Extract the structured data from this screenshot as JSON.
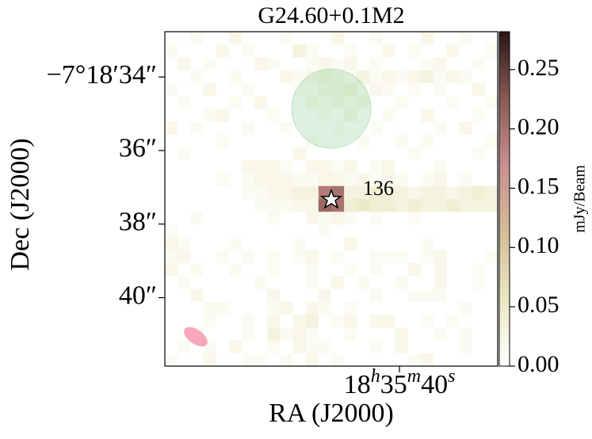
{
  "chart_data": {
    "type": "heatmap",
    "title": "G24.60+0.1M2",
    "x_label": "RA (J2000)",
    "y_label": "Dec (J2000)",
    "xlim": [
      40.43,
      39.82
    ],
    "xticks": [
      {
        "value": 40,
        "label": "18h35m40s"
      }
    ],
    "ylim": [
      41.86,
      32.77
    ],
    "yticks": [
      {
        "value": 34,
        "label": "−7°18′34″"
      },
      {
        "value": 36,
        "label": "36″"
      },
      {
        "value": 38,
        "label": "38″"
      },
      {
        "value": 40,
        "label": "40″"
      }
    ],
    "colorbar_label": "mJy/Beam",
    "clim": [
      0,
      0.282
    ],
    "cticks": [
      {
        "value": 0,
        "label": "0.00"
      },
      0.05,
      {
        "value": 0.1,
        "label": "0.10"
      },
      0.15,
      {
        "value": 0.2,
        "label": "0.20"
      },
      0.25
    ],
    "colormap": [
      "#ffffff",
      "#eae8c2",
      "#d4bb96",
      "#c99090",
      "#8a5a54",
      "#2a1616"
    ],
    "annotation": "136",
    "values": [
      [
        0,
        0,
        0.01,
        0,
        0,
        0.02,
        0,
        0,
        0,
        0.01,
        0,
        0,
        0,
        0.02,
        0,
        0,
        0.01,
        0,
        0,
        0,
        0.02,
        0,
        0,
        0.01,
        0,
        0
      ],
      [
        0.01,
        0,
        0,
        0,
        0.02,
        0,
        0.01,
        0,
        0,
        0,
        0.03,
        0.01,
        0,
        0,
        0.01,
        0,
        0,
        0.02,
        0,
        0.01,
        0,
        0,
        0.02,
        0,
        0,
        0.01
      ],
      [
        0,
        0.02,
        0,
        0.01,
        0,
        0,
        0,
        0.02,
        0.01,
        0,
        0,
        0.01,
        0.02,
        0.01,
        0.02,
        0,
        0.01,
        0,
        0,
        0,
        0.01,
        0.02,
        0,
        0,
        0.01,
        0
      ],
      [
        0,
        0,
        0.01,
        0,
        0,
        0.01,
        0,
        0,
        0,
        0.02,
        0.01,
        0.02,
        0.03,
        0.02,
        0.01,
        0.03,
        0.01,
        0.02,
        0.01,
        0.02,
        0.03,
        0.01,
        0.02,
        0.01,
        0,
        0
      ],
      [
        0.01,
        0,
        0,
        0.02,
        0,
        0,
        0.01,
        0,
        0,
        0,
        0.01,
        0.01,
        0.02,
        0.02,
        0.03,
        0.01,
        0.02,
        0.01,
        0,
        0.01,
        0,
        0.01,
        0,
        0,
        0.02,
        0
      ],
      [
        0,
        0.01,
        0,
        0,
        0,
        0.01,
        0,
        0.02,
        0,
        0,
        0,
        0.02,
        0.01,
        0.02,
        0.01,
        0.02,
        0,
        0,
        0.01,
        0,
        0,
        0,
        0.01,
        0,
        0,
        0.01
      ],
      [
        0,
        0,
        0,
        0.01,
        0.02,
        0,
        0,
        0,
        0.01,
        0,
        0,
        0,
        0.01,
        0,
        0.02,
        0,
        0,
        0.01,
        0,
        0,
        0.02,
        0,
        0,
        0,
        0.01,
        0
      ],
      [
        0.02,
        0,
        0.01,
        0,
        0,
        0,
        0.01,
        0,
        0,
        0.01,
        0,
        0,
        0,
        0.01,
        0,
        0,
        0.01,
        0,
        0,
        0,
        0,
        0.01,
        0,
        0.02,
        0,
        0
      ],
      [
        0,
        0,
        0,
        0,
        0.01,
        0,
        0,
        0,
        0,
        0,
        0,
        0.01,
        0,
        0,
        0,
        0.01,
        0,
        0,
        0.01,
        0,
        0.01,
        0,
        0,
        0,
        0,
        0.01
      ],
      [
        0,
        0.01,
        0,
        0,
        0,
        0,
        0,
        0,
        0,
        0,
        0.02,
        0,
        0,
        0,
        0,
        0,
        0,
        0,
        0,
        0.01,
        0,
        0,
        0,
        0,
        0.01,
        0
      ],
      [
        0,
        0,
        0,
        0,
        0,
        0,
        0.02,
        0.02,
        0.02,
        0.01,
        0,
        0.02,
        0.02,
        0.01,
        0.02,
        0,
        0.01,
        0.02,
        0,
        0,
        0,
        0.01,
        0,
        0,
        0,
        0
      ],
      [
        0,
        0,
        0,
        0,
        0.01,
        0,
        0.01,
        0.02,
        0.02,
        0.02,
        0.01,
        0.01,
        0.02,
        0.02,
        0.01,
        0.02,
        0.01,
        0.02,
        0.01,
        0,
        0.01,
        0.02,
        0,
        0.01,
        0,
        0
      ],
      [
        0,
        0,
        0,
        0,
        0,
        0,
        0.01,
        0.01,
        0.02,
        0.02,
        0.03,
        0.03,
        0.19,
        0.2,
        0.03,
        0.03,
        0.04,
        0.03,
        0.03,
        0.02,
        0.03,
        0.03,
        0.02,
        0.03,
        0.04,
        0.03
      ],
      [
        0,
        0,
        0,
        0,
        0,
        0,
        0,
        0.01,
        0.01,
        0.01,
        0.02,
        0.02,
        0.21,
        0.2,
        0.04,
        0.05,
        0.04,
        0.04,
        0.03,
        0.04,
        0.03,
        0.03,
        0.04,
        0.03,
        0.03,
        0.03
      ],
      [
        0,
        0,
        0.01,
        0,
        0,
        0,
        0,
        0,
        0.01,
        0,
        0,
        0.02,
        0.01,
        0.02,
        0.01,
        0,
        0.01,
        0,
        0,
        0.01,
        0,
        0,
        0,
        0,
        0,
        0
      ],
      [
        0.01,
        0,
        0,
        0,
        0,
        0,
        0,
        0,
        0,
        0,
        0,
        0,
        0.01,
        0,
        0,
        0,
        0,
        0,
        0,
        0,
        0,
        0,
        0,
        0,
        0,
        0
      ],
      [
        0.02,
        0.01,
        0,
        0,
        0,
        0.01,
        0,
        0,
        0,
        0,
        0.01,
        0,
        0,
        0,
        0.02,
        0,
        0,
        0,
        0,
        0,
        0.01,
        0,
        0,
        0,
        0,
        0
      ],
      [
        0.01,
        0.02,
        0,
        0,
        0.01,
        0,
        0.01,
        0,
        0.01,
        0,
        0.01,
        0.02,
        0,
        0.01,
        0,
        0,
        0.01,
        0.01,
        0.01,
        0,
        0.01,
        0.02,
        0,
        0,
        0,
        0.01
      ],
      [
        0.02,
        0,
        0.01,
        0,
        0,
        0.01,
        0,
        0,
        0.01,
        0,
        0,
        0.01,
        0,
        0,
        0.01,
        0,
        0.01,
        0,
        0,
        0.02,
        0,
        0.02,
        0,
        0,
        0.01,
        0
      ],
      [
        0,
        0.01,
        0,
        0,
        0,
        0,
        0,
        0.01,
        0,
        0,
        0,
        0.01,
        0,
        0.02,
        0,
        0.01,
        0,
        0,
        0.01,
        0,
        0,
        0.02,
        0,
        0,
        0.01,
        0
      ],
      [
        0,
        0,
        0.02,
        0,
        0,
        0,
        0,
        0,
        0.02,
        0,
        0,
        0,
        0.02,
        0,
        0,
        0,
        0.01,
        0,
        0,
        0.01,
        0.01,
        0.01,
        0,
        0,
        0,
        0
      ],
      [
        0,
        0,
        0,
        0.01,
        0.01,
        0,
        0,
        0,
        0.01,
        0.02,
        0,
        0.02,
        0.01,
        0,
        0.01,
        0,
        0,
        0,
        0,
        0,
        0,
        0,
        0,
        0.01,
        0,
        0
      ],
      [
        0,
        0,
        0,
        0.01,
        0,
        0,
        0.01,
        0,
        0.02,
        0,
        0.02,
        0.03,
        0,
        0.01,
        0.02,
        0,
        0.02,
        0.02,
        0,
        0,
        0.01,
        0,
        0.01,
        0,
        0,
        0
      ],
      [
        0,
        0,
        0.02,
        0,
        0,
        0,
        0.01,
        0,
        0.03,
        0.01,
        0.02,
        0.01,
        0,
        0,
        0.01,
        0,
        0,
        0,
        0.02,
        0,
        0,
        0.01,
        0,
        0.01,
        0,
        0
      ],
      [
        0,
        0.01,
        0,
        0.01,
        0,
        0.02,
        0,
        0,
        0.01,
        0,
        0.02,
        0.01,
        0.01,
        0,
        0,
        0,
        0.01,
        0,
        0.02,
        0,
        0,
        0,
        0,
        0.01,
        0,
        0
      ],
      [
        0.01,
        0,
        0,
        0.02,
        0,
        0,
        0.01,
        0.01,
        0,
        0.01,
        0,
        0.02,
        0,
        0.01,
        0,
        0,
        0,
        0,
        0,
        0.01,
        0.02,
        0,
        0,
        0,
        0,
        0
      ]
    ]
  }
}
